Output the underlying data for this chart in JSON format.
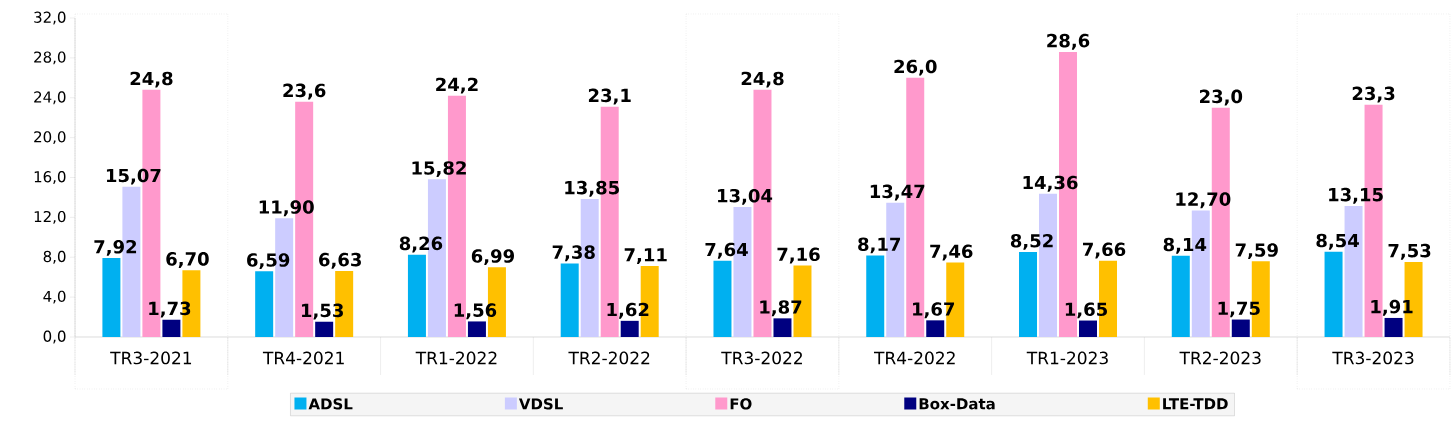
{
  "chart_data": {
    "type": "bar",
    "categories": [
      "TR3-2021",
      "TR4-2021",
      "TR1-2022",
      "TR2-2022",
      "TR3-2022",
      "TR4-2022",
      "TR1-2023",
      "TR2-2023",
      "TR3-2023"
    ],
    "series": [
      {
        "name": "ADSL",
        "color": "#00b0f0",
        "values": [
          7.92,
          6.59,
          8.26,
          7.38,
          7.64,
          8.17,
          8.52,
          8.14,
          8.54
        ],
        "value_labels": [
          "7,92",
          "6,59",
          "8,26",
          "7,38",
          "7,64",
          "8,17",
          "8,52",
          "8,14",
          "8,54"
        ]
      },
      {
        "name": "VDSL",
        "color": "#ccccff",
        "values": [
          15.07,
          11.9,
          15.82,
          13.85,
          13.04,
          13.47,
          14.36,
          12.7,
          13.15
        ],
        "value_labels": [
          "15,07",
          "11,90",
          "15,82",
          "13,85",
          "13,04",
          "13,47",
          "14,36",
          "12,70",
          "13,15"
        ]
      },
      {
        "name": "FO",
        "color": "#ff99cc",
        "values": [
          24.8,
          23.6,
          24.2,
          23.1,
          24.8,
          26.0,
          28.6,
          23.0,
          23.3
        ],
        "value_labels": [
          "24,8",
          "23,6",
          "24,2",
          "23,1",
          "24,8",
          "26,0",
          "28,6",
          "23,0",
          "23,3"
        ]
      },
      {
        "name": "Box-Data",
        "color": "#000080",
        "values": [
          1.73,
          1.53,
          1.56,
          1.62,
          1.87,
          1.67,
          1.65,
          1.75,
          1.91
        ],
        "value_labels": [
          "1,73",
          "1,53",
          "1,56",
          "1,62",
          "1,87",
          "1,67",
          "1,65",
          "1,75",
          "1,91"
        ]
      },
      {
        "name": "LTE-TDD",
        "color": "#ffc000",
        "values": [
          6.7,
          6.63,
          6.99,
          7.11,
          7.16,
          7.46,
          7.66,
          7.59,
          7.53
        ],
        "value_labels": [
          "6,70",
          "6,63",
          "6,99",
          "7,11",
          "7,16",
          "7,46",
          "7,66",
          "7,59",
          "7,53"
        ]
      }
    ],
    "ylim": [
      0,
      32
    ],
    "yticks": [
      {
        "value": 0,
        "label": "0,0"
      },
      {
        "value": 4,
        "label": "4,0"
      },
      {
        "value": 8,
        "label": "8,0"
      },
      {
        "value": 12,
        "label": "12,0"
      },
      {
        "value": 16,
        "label": "16,0"
      },
      {
        "value": 20,
        "label": "20,0"
      },
      {
        "value": 24,
        "label": "24,0"
      },
      {
        "value": 28,
        "label": "28,0"
      },
      {
        "value": 32,
        "label": "32,0"
      }
    ],
    "grid": false,
    "legend": "bottom"
  }
}
